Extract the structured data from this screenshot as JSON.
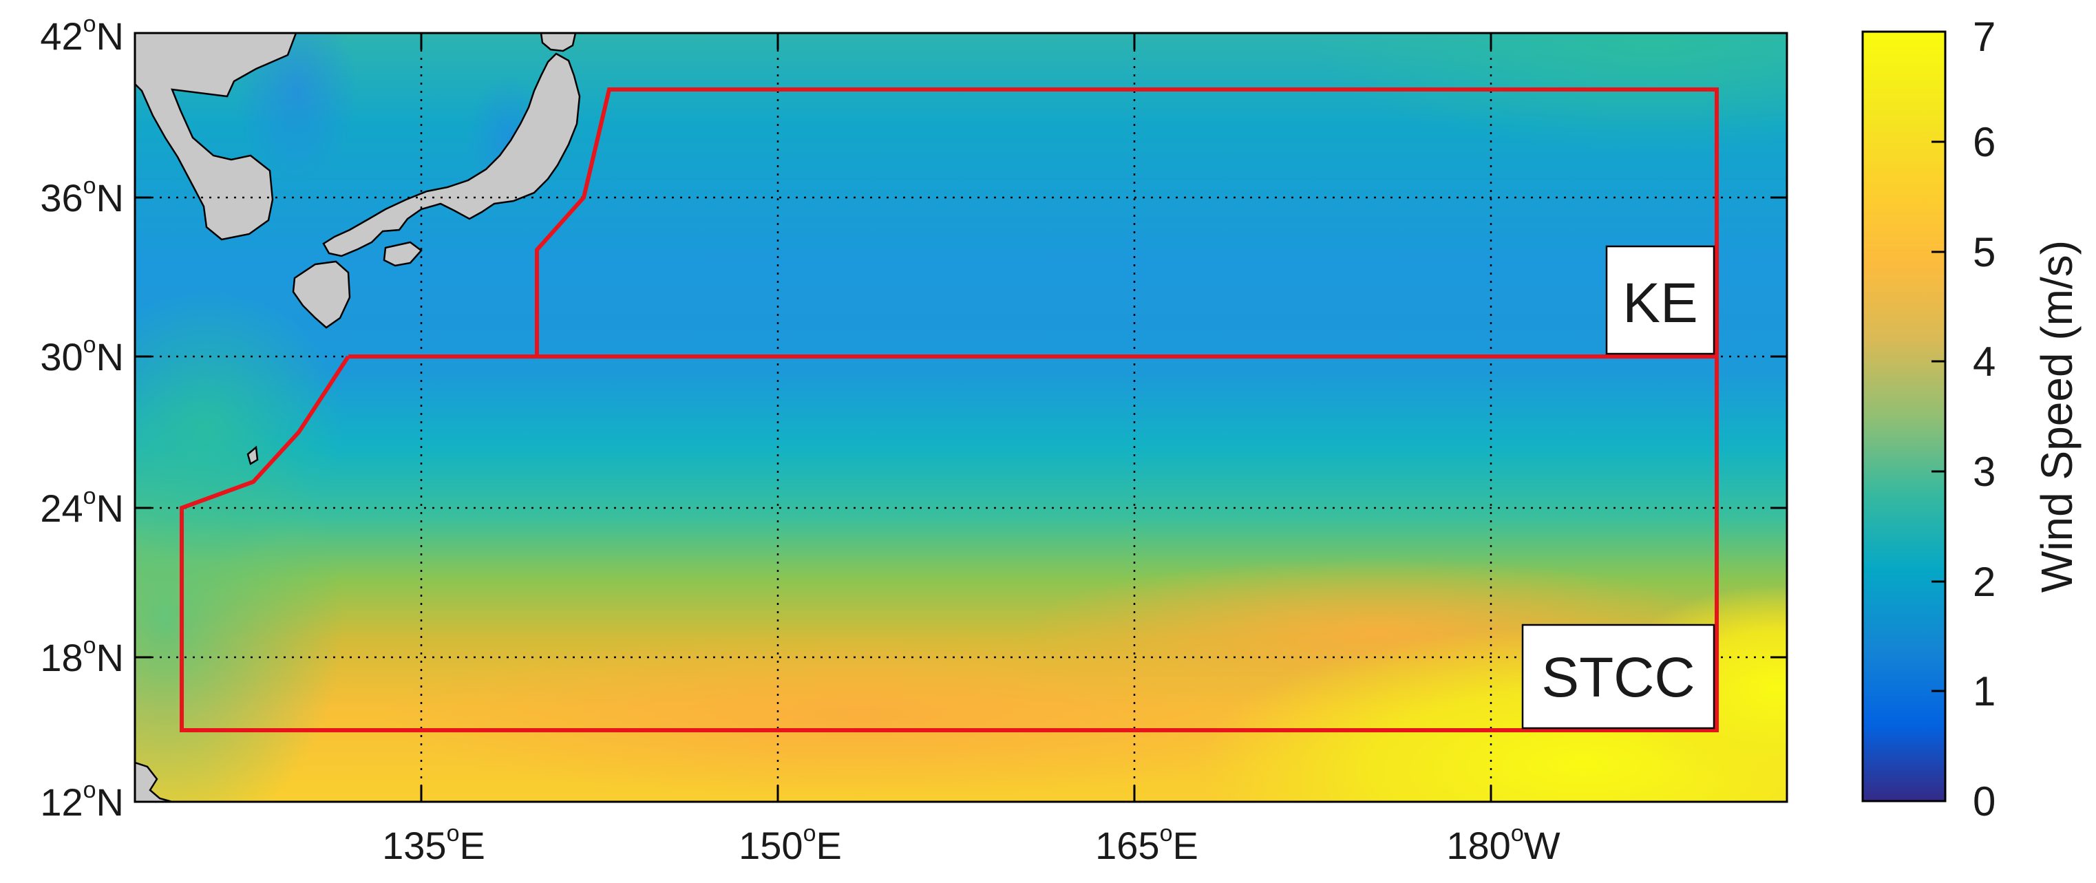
{
  "map": {
    "lat_labels": [
      {
        "deg": "12",
        "sup": "o",
        "hemi": "N"
      },
      {
        "deg": "18",
        "sup": "o",
        "hemi": "N"
      },
      {
        "deg": "24",
        "sup": "o",
        "hemi": "N"
      },
      {
        "deg": "30",
        "sup": "o",
        "hemi": "N"
      },
      {
        "deg": "36",
        "sup": "o",
        "hemi": "N"
      },
      {
        "deg": "42",
        "sup": "o",
        "hemi": "N"
      }
    ],
    "lon_labels": [
      {
        "deg": "135",
        "sup": "o",
        "hemi": "E"
      },
      {
        "deg": "150",
        "sup": "o",
        "hemi": "E"
      },
      {
        "deg": "165",
        "sup": "o",
        "hemi": "E"
      },
      {
        "deg": "180",
        "sup": "o",
        "hemi": "W"
      }
    ],
    "regions": [
      {
        "label": "KE"
      },
      {
        "label": "STCC"
      }
    ],
    "box_color": "#e8141b",
    "land_color": "#c8c8c8"
  },
  "colorbar": {
    "label": "Wind Speed (m/s)",
    "ticks": [
      "0",
      "1",
      "2",
      "3",
      "4",
      "5",
      "6",
      "7"
    ],
    "range": [
      0,
      7
    ],
    "colormap": "parula"
  }
}
